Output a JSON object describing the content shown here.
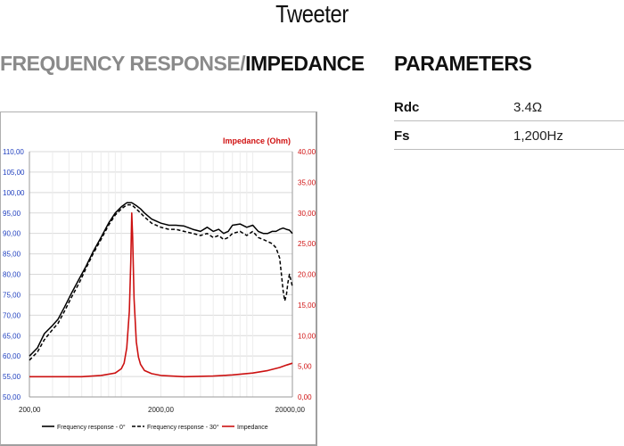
{
  "header": {
    "title": "Tweeter"
  },
  "sections": {
    "fr_title_part1": "FREQUENCY RESPONSE/",
    "fr_title_part2": "IMPEDANCE",
    "params_title": "PARAMETERS"
  },
  "parameters": [
    {
      "name": "Rdc",
      "value": "3.4Ω"
    },
    {
      "name": "Fs",
      "value": "1,200Hz"
    }
  ],
  "chart_data": {
    "type": "line",
    "xscale": "log",
    "xlim": [
      200,
      20000
    ],
    "xticks": [
      "200,00",
      "2000,00",
      "20000,00"
    ],
    "y_left": {
      "lim": [
        50,
        110
      ],
      "ticks": [
        "50,00",
        "55,00",
        "60,00",
        "65,00",
        "70,00",
        "75,00",
        "80,00",
        "85,00",
        "90,00",
        "95,00",
        "100,00",
        "105,00",
        "110,00"
      ],
      "color": "#1f3fbf"
    },
    "y_right": {
      "label": "Impedance (Ohm)",
      "lim": [
        0,
        40
      ],
      "ticks": [
        "0,00",
        "5,00",
        "10,00",
        "15,00",
        "20,00",
        "25,00",
        "30,00",
        "35,00",
        "40,00"
      ],
      "color": "#d01010"
    },
    "grid": true,
    "legend_position": "bottom",
    "series": [
      {
        "name": "Frequency response - 0°",
        "axis": "left",
        "style": "solid",
        "color": "#000000",
        "x": [
          200,
          230,
          260,
          300,
          330,
          370,
          420,
          480,
          540,
          610,
          700,
          800,
          900,
          1000,
          1100,
          1200,
          1300,
          1400,
          1500,
          1700,
          2000,
          2300,
          2600,
          3000,
          3500,
          4000,
          4500,
          5000,
          5500,
          6000,
          6500,
          7000,
          8000,
          9000,
          10000,
          11000,
          12000,
          13000,
          14000,
          15000,
          16000,
          17000,
          18000,
          19000,
          20000
        ],
        "y": [
          60,
          62,
          65.5,
          67.5,
          69,
          72,
          75.5,
          79,
          82,
          85.5,
          89,
          92.5,
          95,
          96.5,
          97.5,
          97.5,
          96.8,
          96,
          95,
          93.5,
          92.5,
          92,
          92,
          91.8,
          91,
          90.5,
          91.5,
          90.5,
          91,
          90,
          90.5,
          92,
          92.3,
          91.5,
          92,
          90.5,
          90,
          90,
          90.5,
          90.5,
          91,
          91.3,
          91,
          90.8,
          90
        ]
      },
      {
        "name": "Frequency response - 30°",
        "axis": "left",
        "style": "dashed",
        "color": "#000000",
        "x": [
          200,
          230,
          260,
          300,
          330,
          370,
          420,
          480,
          540,
          610,
          700,
          800,
          900,
          1000,
          1100,
          1200,
          1300,
          1400,
          1500,
          1700,
          2000,
          2300,
          2600,
          3000,
          3500,
          4000,
          4500,
          5000,
          5500,
          6000,
          6500,
          7000,
          8000,
          9000,
          10000,
          11000,
          12000,
          13000,
          14000,
          15000,
          16000,
          16500,
          17000,
          17500,
          18000,
          18500,
          19000,
          19500,
          20000
        ],
        "y": [
          59,
          61,
          64,
          66.5,
          68,
          71,
          74.5,
          78,
          81.5,
          85,
          88.5,
          92,
          94.5,
          96,
          97,
          97,
          96,
          95,
          94,
          92.5,
          91.5,
          91,
          91,
          90.5,
          90,
          89.5,
          90,
          89,
          89.5,
          88.5,
          89,
          90,
          90.5,
          89.5,
          90.5,
          89,
          88.5,
          88,
          87.5,
          86.5,
          84,
          80,
          76,
          73.5,
          75,
          78,
          80,
          78.5,
          77
        ]
      },
      {
        "name": "Impedance",
        "axis": "right",
        "style": "solid",
        "color": "#cc1111",
        "x": [
          200,
          300,
          500,
          700,
          900,
          1000,
          1050,
          1100,
          1150,
          1180,
          1200,
          1220,
          1250,
          1300,
          1350,
          1400,
          1500,
          1700,
          2000,
          3000,
          5000,
          7000,
          10000,
          13000,
          16000,
          18000,
          20000
        ],
        "y": [
          3.3,
          3.3,
          3.3,
          3.5,
          3.9,
          4.6,
          5.5,
          8.0,
          14.0,
          22.0,
          30.0,
          26.0,
          16.0,
          9.0,
          6.5,
          5.3,
          4.3,
          3.8,
          3.5,
          3.3,
          3.4,
          3.6,
          3.9,
          4.3,
          4.8,
          5.2,
          5.5
        ]
      }
    ]
  }
}
